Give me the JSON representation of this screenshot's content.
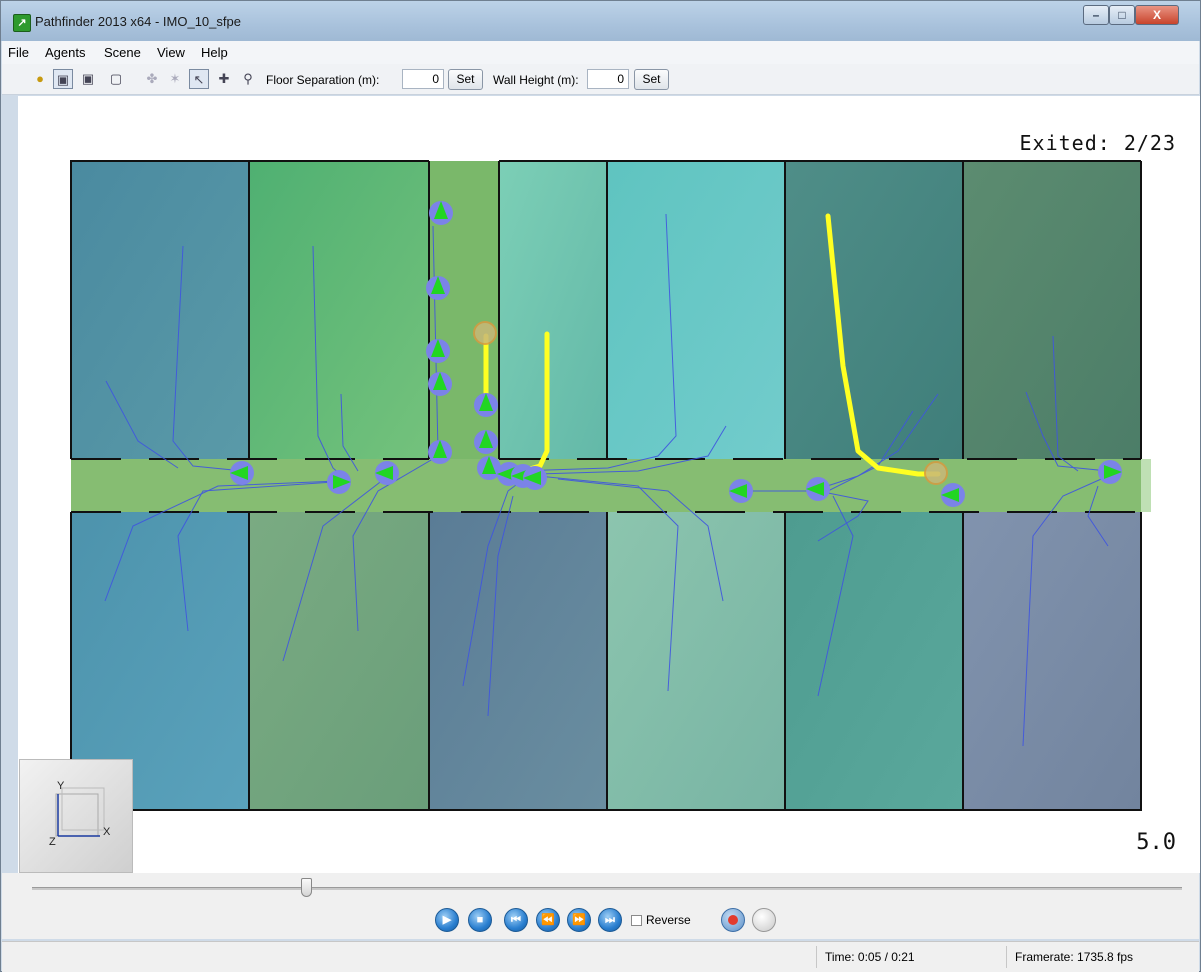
{
  "window": {
    "title": "Pathfinder 2013 x64 - IMO_10_sfpe",
    "app_icon": "running-man-icon",
    "controls": {
      "minimize": "–",
      "maximize": "□",
      "close": "X"
    }
  },
  "menu": {
    "items": [
      {
        "label": "File"
      },
      {
        "label": "Agents"
      },
      {
        "label": "Scene"
      },
      {
        "label": "View"
      },
      {
        "label": "Help"
      }
    ]
  },
  "toolbar": {
    "floor_separation_label": "Floor Separation (m):",
    "floor_separation_value": "0",
    "wall_height_label": "Wall Height (m):",
    "wall_height_value": "0",
    "set_label": "Set"
  },
  "viewport": {
    "exited_label": "Exited:",
    "exited_value": "2/23",
    "scale_value": "5.0",
    "axis": {
      "y": "Y",
      "x": "X",
      "z": "Z"
    }
  },
  "playback": {
    "reverse_label": "Reverse",
    "buttons": [
      "play-icon",
      "stop-icon",
      "skip-start-icon",
      "step-back-icon",
      "step-forward-icon",
      "skip-end-icon"
    ]
  },
  "status": {
    "time": "Time: 0:05 / 0:21",
    "framerate": "Framerate: 1735.8 fps"
  },
  "colors": {
    "path_highlight": "#ffff22",
    "agent_body": "#7b83e8",
    "agent_arrow": "#22d622",
    "trail": "#3f55e0",
    "corridor": "#86bd72"
  }
}
